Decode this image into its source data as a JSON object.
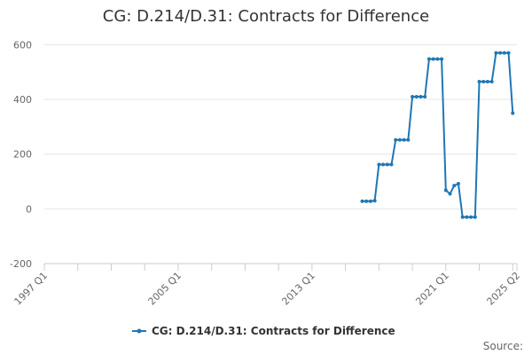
{
  "chart_data": {
    "type": "line",
    "title": "CG: D.214/D.31: Contracts for Difference",
    "xlabel": "",
    "ylabel": "",
    "x_start": "1997 Q1",
    "x_end": "2025 Q2",
    "x_ticks": [
      "1997 Q1",
      "2005 Q1",
      "2013 Q1",
      "2021 Q1",
      "2025 Q2"
    ],
    "y_ticks": [
      -200,
      0,
      200,
      400,
      600
    ],
    "ylim": [
      -200,
      650
    ],
    "grid": true,
    "legend_position": "bottom",
    "series": [
      {
        "name": "CG: D.214/D.31: Contracts for Difference",
        "color": "#1f77b4",
        "points": [
          [
            "2016 Q1",
            28
          ],
          [
            "2016 Q2",
            28
          ],
          [
            "2016 Q3",
            28
          ],
          [
            "2016 Q4",
            30
          ],
          [
            "2017 Q1",
            162
          ],
          [
            "2017 Q2",
            162
          ],
          [
            "2017 Q3",
            162
          ],
          [
            "2017 Q4",
            162
          ],
          [
            "2018 Q1",
            252
          ],
          [
            "2018 Q2",
            252
          ],
          [
            "2018 Q3",
            252
          ],
          [
            "2018 Q4",
            252
          ],
          [
            "2019 Q1",
            410
          ],
          [
            "2019 Q2",
            410
          ],
          [
            "2019 Q3",
            410
          ],
          [
            "2019 Q4",
            410
          ],
          [
            "2020 Q1",
            548
          ],
          [
            "2020 Q2",
            548
          ],
          [
            "2020 Q3",
            548
          ],
          [
            "2020 Q4",
            548
          ],
          [
            "2021 Q1",
            68
          ],
          [
            "2021 Q2",
            55
          ],
          [
            "2021 Q3",
            85
          ],
          [
            "2021 Q4",
            92
          ],
          [
            "2022 Q1",
            -30
          ],
          [
            "2022 Q2",
            -30
          ],
          [
            "2022 Q3",
            -30
          ],
          [
            "2022 Q4",
            -30
          ],
          [
            "2023 Q1",
            465
          ],
          [
            "2023 Q2",
            465
          ],
          [
            "2023 Q3",
            465
          ],
          [
            "2023 Q4",
            465
          ],
          [
            "2024 Q1",
            570
          ],
          [
            "2024 Q2",
            570
          ],
          [
            "2024 Q3",
            570
          ],
          [
            "2024 Q4",
            570
          ],
          [
            "2025 Q1",
            350
          ]
        ]
      }
    ]
  },
  "credits": "Source:"
}
